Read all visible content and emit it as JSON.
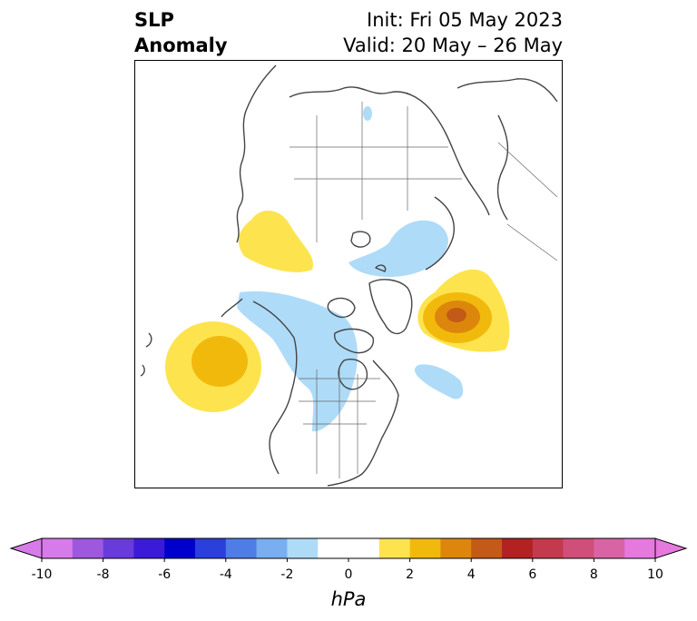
{
  "title": {
    "left_line1": "SLP",
    "left_line2": "Anomaly",
    "right_line1": "Init: Fri 05 May 2023",
    "right_line2": "Valid: 20 May – 26 May"
  },
  "colorbar": {
    "unit": "hPa",
    "min": -10,
    "max": 10,
    "ticks": [
      "-10",
      "-8",
      "-6",
      "-4",
      "-2",
      "0",
      "2",
      "4",
      "6",
      "8",
      "10"
    ],
    "bounds": [
      -10,
      -9,
      -8,
      -7,
      -6,
      -5,
      -4,
      -3,
      -2,
      -1,
      1,
      2,
      3,
      4,
      5,
      6,
      7,
      8,
      9,
      10
    ],
    "colors": [
      "#d87bea",
      "#9e58de",
      "#6a3bdb",
      "#3b1bd8",
      "#0000cc",
      "#2b3fdd",
      "#4f7de6",
      "#79aef0",
      "#aedbf8",
      "#ffffff",
      "#fde44f",
      "#f2b90d",
      "#dc870c",
      "#c45a17",
      "#b22222",
      "#c33a4e",
      "#cf4f7a",
      "#d964a5",
      "#e579dd"
    ],
    "under_color": "#d87bea",
    "over_color": "#e579dd"
  },
  "map": {
    "projection": "polar-stereographic",
    "region": "Northern Hemisphere",
    "features": [
      {
        "name": "positive anomaly over North Pacific",
        "peak_hpa": 3
      },
      {
        "name": "positive anomaly near Greenland",
        "peak_hpa": 5
      },
      {
        "name": "weak positive anomaly over Eurasia",
        "peak_hpa": 2
      },
      {
        "name": "negative anomaly over western North America",
        "peak_hpa": -2
      },
      {
        "name": "negative anomaly over Scandinavia/Arctic",
        "peak_hpa": -2
      }
    ]
  }
}
